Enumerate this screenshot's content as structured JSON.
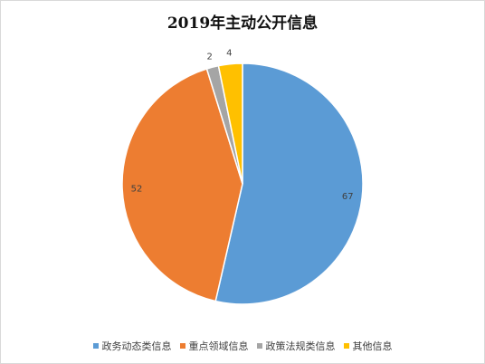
{
  "chart_data": {
    "type": "pie",
    "title": "2019年主动公开信息",
    "categories": [
      "政务动态类信息",
      "重点领域信息",
      "政策法规类信息",
      "其他信息"
    ],
    "values": [
      67,
      52,
      2,
      4
    ],
    "colors": [
      "#5B9BD5",
      "#ED7D31",
      "#A5A5A5",
      "#FFC000"
    ],
    "data_labels": [
      "67",
      "52",
      "2",
      "4"
    ],
    "legend_position": "bottom",
    "start_angle": "12 o'clock",
    "direction": "clockwise"
  }
}
